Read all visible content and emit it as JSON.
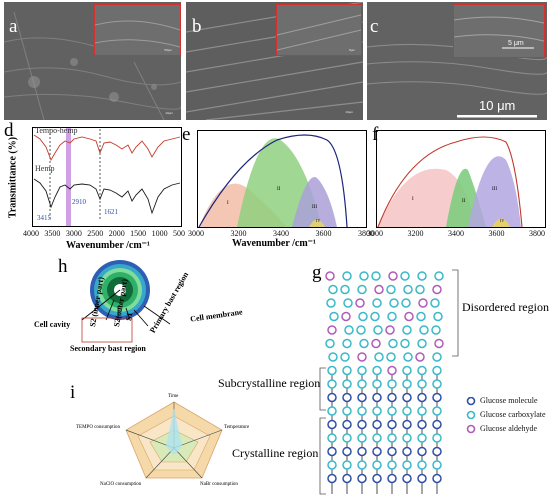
{
  "panels": {
    "a": {
      "label": "a",
      "inset_scale": "50µm",
      "scale": "10µm"
    },
    "b": {
      "label": "b",
      "inset_scale": "5µm",
      "scale": "10µm"
    },
    "c": {
      "label": "c",
      "inset_scale": "5 μm",
      "scale": "10 μm"
    },
    "d": {
      "label": "d",
      "ylabel": "Transmittance (%)",
      "xlabel": "Wavenumber /cm⁻¹",
      "series_top": "Tempo-hemp",
      "series_bottom": "Hemp",
      "peak_labels": [
        "3415",
        "2910",
        "1621"
      ]
    },
    "e": {
      "label": "e",
      "xlabel": "Wavenumber /cm⁻¹"
    },
    "f": {
      "label": "f"
    },
    "h": {
      "label": "h",
      "cell_membrane": "Cell membrane",
      "primary_bast": "Primary bast region",
      "cell_cavity": "Cell cavity",
      "s2_inner": "S2 (inner part)",
      "s2_outer": "S2(outer part)",
      "s1": "S1",
      "secondary_bast": "Secondary bast region"
    },
    "i": {
      "label": "i",
      "axes": [
        "Time",
        "Temperature",
        "NaBr consumption",
        "NaClO consumption",
        "TEMPO consumption"
      ]
    },
    "g": {
      "label": "g",
      "disordered": "Disordered region",
      "subcrystalline": "Subcrystalline region",
      "crystalline": "Crystalline region",
      "legend": [
        "Glucose molecule",
        "Glucose carboxylate",
        "Glucose aldehyde"
      ]
    }
  },
  "colors": {
    "glucose": "#2e4fa8",
    "carboxylate": "#39b9c8",
    "aldehyde": "#b05bb8",
    "tempo_line": "#c0392b",
    "hemp_line": "#1a1a1a",
    "highlight": "#c88fe0"
  },
  "chart_data": [
    {
      "type": "line",
      "title": "",
      "xlabel": "Wavenumber /cm⁻¹",
      "ylabel": "Transmittance (%)",
      "xlim": [
        4000,
        500
      ],
      "x_ticks": [
        4000,
        3500,
        3000,
        2500,
        2000,
        1500,
        1000,
        500
      ],
      "series": [
        {
          "name": "Tempo-hemp"
        },
        {
          "name": "Hemp"
        }
      ],
      "annotations": [
        3415,
        2910,
        1621
      ]
    },
    {
      "type": "area",
      "title": "",
      "xlabel": "Wavenumber /cm⁻¹",
      "xlim": [
        3000,
        3800
      ],
      "x_ticks": [
        3000,
        3200,
        3400,
        3600,
        3800
      ],
      "series": [
        {
          "name": "I",
          "center": 3200
        },
        {
          "name": "II",
          "center": 3420
        },
        {
          "name": "III",
          "center": 3570
        },
        {
          "name": "IV",
          "center": 3650
        }
      ]
    },
    {
      "type": "area",
      "title": "",
      "xlim": [
        3000,
        3800
      ],
      "x_ticks": [
        3000,
        3200,
        3400,
        3600,
        3800
      ],
      "series": [
        {
          "name": "I",
          "center": 3300
        },
        {
          "name": "II",
          "center": 3420
        },
        {
          "name": "III",
          "center": 3530
        },
        {
          "name": "IV",
          "center": 3640
        }
      ]
    },
    {
      "type": "radar",
      "title": "",
      "categories": [
        "Time",
        "Temperature",
        "NaBr consumption",
        "NaClO consumption",
        "TEMPO consumption"
      ]
    }
  ]
}
